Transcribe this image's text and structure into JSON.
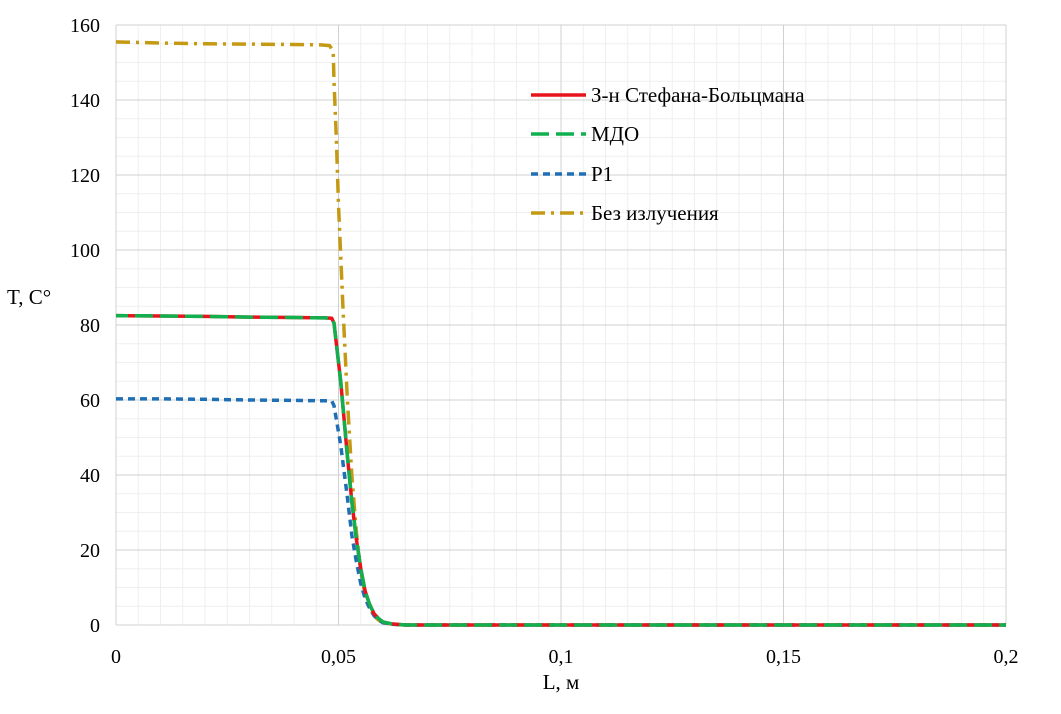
{
  "chart_data": {
    "type": "line",
    "title": "",
    "xlabel": "L, м",
    "ylabel": "T, C°",
    "xlim": [
      0,
      0.2
    ],
    "ylim": [
      0,
      160
    ],
    "x_ticks": [
      0,
      0.05,
      0.1,
      0.15,
      0.2
    ],
    "x_tick_labels": [
      "0",
      "0,05",
      "0,1",
      "0,15",
      "0,2"
    ],
    "y_ticks": [
      0,
      20,
      40,
      60,
      80,
      100,
      120,
      140,
      160
    ],
    "y_tick_labels": [
      "0",
      "20",
      "40",
      "60",
      "80",
      "100",
      "120",
      "140",
      "160"
    ],
    "grid": true,
    "legend_position": "top-right",
    "series": [
      {
        "name": "З-н Стефана-Больцмана",
        "color": "#e8141c",
        "dash": "solid",
        "x": [
          0,
          0.01,
          0.02,
          0.03,
          0.04,
          0.047,
          0.0485,
          0.049,
          0.0505,
          0.052,
          0.053,
          0.054,
          0.055,
          0.056,
          0.057,
          0.058,
          0.059,
          0.06,
          0.062,
          0.065,
          0.07,
          0.1,
          0.15,
          0.2
        ],
        "y": [
          82.5,
          82.4,
          82.3,
          82.1,
          82.0,
          81.9,
          81.8,
          80.5,
          65,
          45,
          33,
          23,
          15,
          9,
          5.5,
          3,
          1.7,
          0.8,
          0.3,
          0,
          0,
          0,
          0,
          0
        ]
      },
      {
        "name": "МДО",
        "color": "#10b04e",
        "dash": "long-dash",
        "x": [
          0,
          0.01,
          0.02,
          0.03,
          0.04,
          0.047,
          0.0485,
          0.049,
          0.0505,
          0.052,
          0.053,
          0.054,
          0.055,
          0.056,
          0.057,
          0.058,
          0.059,
          0.06,
          0.062,
          0.065,
          0.07,
          0.1,
          0.15,
          0.2
        ],
        "y": [
          82.5,
          82.4,
          82.3,
          82.1,
          82.0,
          81.9,
          81.8,
          80.5,
          65,
          45,
          33,
          23,
          15,
          9,
          5.5,
          3,
          1.7,
          0.8,
          0.3,
          0,
          0,
          0,
          0,
          0
        ]
      },
      {
        "name": "P1",
        "color": "#1f6fb4",
        "dash": "short-dash",
        "x": [
          0,
          0.01,
          0.02,
          0.03,
          0.04,
          0.047,
          0.0485,
          0.049,
          0.0505,
          0.052,
          0.053,
          0.054,
          0.055,
          0.056,
          0.057,
          0.058,
          0.059,
          0.06,
          0.062,
          0.065,
          0.07,
          0.1,
          0.15,
          0.2
        ],
        "y": [
          60.3,
          60.3,
          60.2,
          60.0,
          59.9,
          59.8,
          59.7,
          58.5,
          48,
          34,
          24,
          17,
          11,
          7,
          4.5,
          2.5,
          1.3,
          0.6,
          0.2,
          0,
          0,
          0,
          0,
          0
        ]
      },
      {
        "name": "Без излучения",
        "color": "#c49a14",
        "dash": "dash-dot",
        "x": [
          0,
          0.01,
          0.02,
          0.03,
          0.04,
          0.046,
          0.048,
          0.0488,
          0.049,
          0.0495,
          0.05,
          0.051,
          0.052,
          0.053,
          0.054,
          0.055,
          0.056,
          0.057,
          0.058,
          0.059,
          0.06,
          0.062,
          0.065,
          0.07,
          0.1,
          0.15,
          0.2
        ],
        "y": [
          155.5,
          155.2,
          155.0,
          154.9,
          154.8,
          154.7,
          154.5,
          153,
          145,
          130,
          112,
          85,
          60,
          40,
          25,
          14,
          8,
          4.5,
          2.5,
          1.3,
          0.6,
          0.2,
          0,
          0,
          0,
          0,
          0
        ]
      }
    ]
  }
}
